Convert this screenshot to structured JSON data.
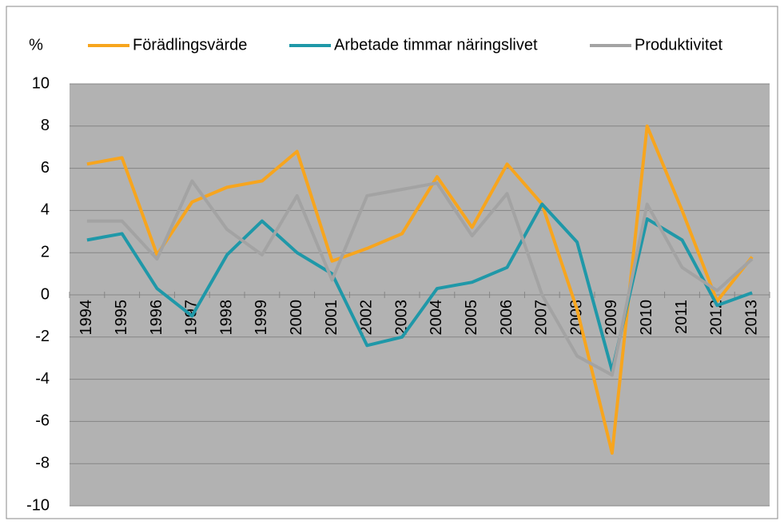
{
  "chart_data": {
    "type": "line",
    "y_label": "%",
    "categories": [
      "1994",
      "1995",
      "1996",
      "1997",
      "1998",
      "1999",
      "2000",
      "2001",
      "2002",
      "2003",
      "2004",
      "2005",
      "2006",
      "2007",
      "2008",
      "2009",
      "2010",
      "2011",
      "2012",
      "2013"
    ],
    "series": [
      {
        "name": "Förädlingsvärde",
        "color": "#f7a51e",
        "values": [
          6.2,
          6.5,
          1.9,
          4.4,
          5.1,
          5.4,
          6.8,
          1.6,
          2.2,
          2.9,
          5.6,
          3.2,
          6.2,
          4.3,
          -0.7,
          -7.5,
          8.0,
          4.0,
          -0.3,
          1.8
        ]
      },
      {
        "name": "Arbetade timmar näringslivet",
        "color": "#1f98a8",
        "values": [
          2.6,
          2.9,
          0.3,
          -1.0,
          1.9,
          3.5,
          2.0,
          1.0,
          -2.4,
          -2.0,
          0.3,
          0.6,
          1.3,
          4.3,
          2.5,
          -3.6,
          3.6,
          2.6,
          -0.5,
          0.1
        ]
      },
      {
        "name": "Produktivitet",
        "color": "#a3a3a3",
        "values": [
          3.5,
          3.5,
          1.7,
          5.4,
          3.1,
          1.9,
          4.7,
          0.7,
          4.7,
          5.0,
          5.3,
          2.8,
          4.8,
          0.0,
          -2.9,
          -3.8,
          4.3,
          1.3,
          0.2,
          1.7
        ]
      }
    ],
    "ylim": [
      -10,
      10
    ],
    "yticks": [
      -10,
      -8,
      -6,
      -4,
      -2,
      0,
      2,
      4,
      6,
      8,
      10
    ],
    "grid": true,
    "legend": "top"
  }
}
